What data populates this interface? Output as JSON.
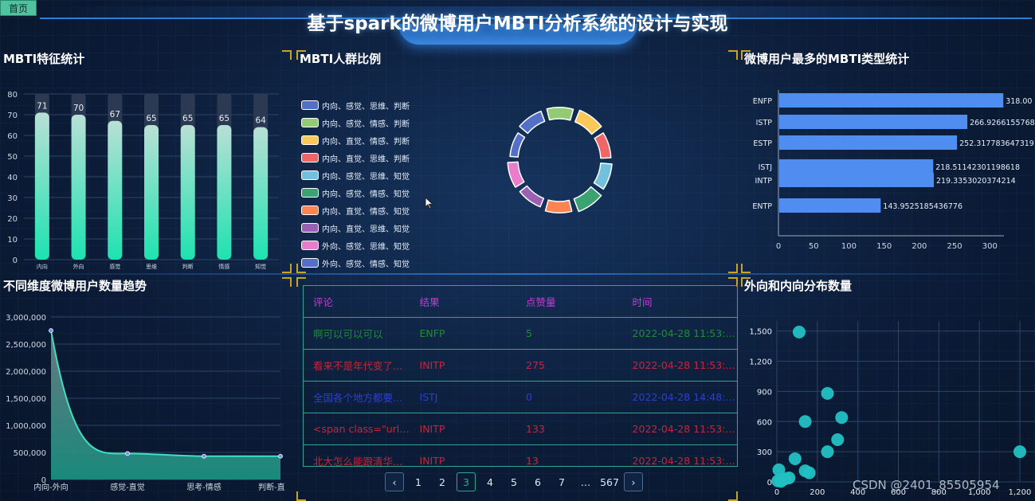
{
  "header": {
    "home_label": "首页",
    "title": "基于spark的微博用户MBTI分析系统的设计与实现"
  },
  "panels": {
    "feature_stats": {
      "title": "MBTI特征统计",
      "chart_data": {
        "type": "bar",
        "categories": [
          "内向",
          "外向",
          "感觉",
          "思维",
          "判断",
          "情感",
          "知觉"
        ],
        "values": [
          71,
          70,
          67,
          65,
          65,
          65,
          64
        ],
        "ylim": [
          0,
          80
        ],
        "yticks": [
          0,
          10,
          20,
          30,
          40,
          50,
          60,
          70,
          80
        ],
        "colors": {
          "top": "#b9e0d5",
          "bottom": "#1de2b0",
          "background": "#2b3a52"
        }
      }
    },
    "ratio": {
      "title": "MBTI人群比例",
      "chart_data": {
        "type": "pie",
        "categories": [
          "内向、感觉、思维、判断",
          "内向、感觉、情感、判断",
          "内向、直觉、情感、判断",
          "内向、直觉、思维、判断",
          "内向、感觉、思维、知觉",
          "内向、感觉、情感、知觉",
          "内向、直觉、情感、知觉",
          "内向、直觉、思维、知觉",
          "外向、感觉、思维、知觉",
          "外向、感觉、情感、知觉"
        ],
        "colors": [
          "#5470c6",
          "#91cc75",
          "#fac858",
          "#ee6666",
          "#73c0de",
          "#3ba272",
          "#fc8452",
          "#9a60b4",
          "#ea7ccc",
          "#5470c6"
        ]
      }
    },
    "top_types": {
      "title": "微博用户最多的MBTI类型统计",
      "chart_data": {
        "type": "bar",
        "orientation": "horizontal",
        "categories": [
          "ENFP",
          "ISTP",
          "ESTP",
          "ISTJ",
          "INTP",
          "ENTP"
        ],
        "values": [
          318.0,
          266.9266155768,
          252.317783647319,
          218.51142301198618,
          219.3353020374214,
          143.9525185436776
        ],
        "labels": [
          "318.00",
          "266.9266155768",
          "252.317783647319",
          "218.51142301198618",
          "219.3353020374214",
          "143.9525185436776"
        ],
        "xticks": [
          0,
          50,
          100,
          150,
          200,
          250,
          300
        ],
        "xlim": [
          0,
          320
        ],
        "colors": {
          "bar": "#4f8ef0"
        }
      }
    },
    "trend": {
      "title": "不同维度微博用户数量趋势",
      "chart_data": {
        "type": "area",
        "categories": [
          "内向-外向",
          "感觉-直觉",
          "思考-情感",
          "判断-直"
        ],
        "values": [
          2750000,
          480000,
          430000,
          430000
        ],
        "ylim": [
          0,
          3000000
        ],
        "yticks": [
          "0",
          "500,000",
          "1,000,000",
          "1,500,000",
          "2,000,000",
          "2,500,000",
          "3,000,000"
        ],
        "colors": {
          "line": "#3ee0c0",
          "fill_top": "#6e7d86",
          "fill_bottom": "#1a8f80"
        }
      }
    },
    "comments": {
      "headers": [
        "评论",
        "结果",
        "点赞量",
        "时间"
      ],
      "rows": [
        {
          "comment": "啊可以可以可以",
          "result": "ENFP",
          "likes": "5",
          "time": "2022-04-28 11:53:31",
          "color": "#1f8a3a"
        },
        {
          "comment": "看来不是年代变了...",
          "result": "INITP",
          "likes": "275",
          "time": "2022-04-28 11:53:31",
          "color": "#c8243a"
        },
        {
          "comment": "全国各个地方都要...",
          "result": "ISTJ",
          "likes": "0",
          "time": "2022-04-28 14:48:30",
          "color": "#2d3fd0"
        },
        {
          "comment": "<span class=\"url-i...",
          "result": "INITP",
          "likes": "133",
          "time": "2022-04-28 11:53:31",
          "color": "#c8243a"
        },
        {
          "comment": "北大怎么能跟清华...",
          "result": "INITP",
          "likes": "13",
          "time": "2022-04-28 11:53:31",
          "color": "#c8243a"
        }
      ],
      "pagination": {
        "prev": "‹",
        "pages": [
          "1",
          "2",
          "3",
          "4",
          "5",
          "6",
          "7",
          "…",
          "567"
        ],
        "active": "3",
        "next": "›"
      }
    },
    "scatter": {
      "title": "外向和内向分布数量",
      "chart_data": {
        "type": "scatter",
        "points": [
          [
            110,
            1490
          ],
          [
            250,
            880
          ],
          [
            140,
            600
          ],
          [
            320,
            640
          ],
          [
            300,
            420
          ],
          [
            250,
            300
          ],
          [
            90,
            230
          ],
          [
            10,
            120
          ],
          [
            140,
            110
          ],
          [
            160,
            90
          ],
          [
            60,
            40
          ],
          [
            40,
            30
          ],
          [
            5,
            10
          ],
          [
            20,
            5
          ],
          [
            1200,
            300
          ]
        ],
        "xticks": [
          "0",
          "200",
          "400",
          "600",
          "800",
          "1,000",
          "1,200"
        ],
        "yticks": [
          "0",
          "300",
          "600",
          "900",
          "1,200",
          "1,500"
        ],
        "xlim": [
          0,
          1200
        ],
        "ylim": [
          0,
          1600
        ],
        "colors": {
          "point": "#22c1c3"
        }
      }
    }
  },
  "watermark": "CSDN @2401_85505954"
}
